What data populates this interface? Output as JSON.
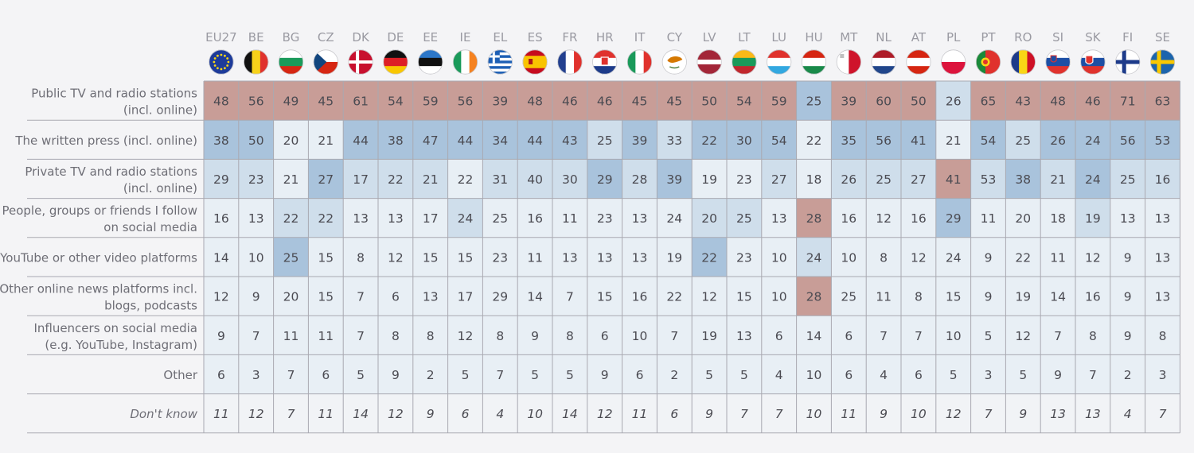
{
  "chart_data": {
    "type": "table",
    "countries": [
      "EU27",
      "BE",
      "BG",
      "CZ",
      "DK",
      "DE",
      "EE",
      "IE",
      "EL",
      "ES",
      "FR",
      "HR",
      "IT",
      "CY",
      "LV",
      "LT",
      "LU",
      "HU",
      "MT",
      "NL",
      "AT",
      "PL",
      "PT",
      "RO",
      "SI",
      "SK",
      "FI",
      "SE"
    ],
    "rows": [
      {
        "label": [
          "Public TV and radio stations",
          "(incl. online)"
        ],
        "italic": false,
        "values": [
          48,
          56,
          49,
          45,
          61,
          54,
          59,
          56,
          39,
          48,
          46,
          46,
          45,
          45,
          50,
          54,
          59,
          25,
          39,
          60,
          50,
          26,
          65,
          43,
          48,
          46,
          71,
          63
        ]
      },
      {
        "label": [
          "The written press (incl. online)"
        ],
        "italic": false,
        "values": [
          38,
          50,
          20,
          21,
          44,
          38,
          47,
          44,
          34,
          44,
          43,
          25,
          39,
          33,
          22,
          30,
          54,
          22,
          35,
          56,
          41,
          21,
          54,
          25,
          26,
          24,
          56,
          53
        ]
      },
      {
        "label": [
          "Private TV and radio stations",
          "(incl. online)"
        ],
        "italic": false,
        "values": [
          29,
          23,
          21,
          27,
          17,
          22,
          21,
          22,
          31,
          40,
          30,
          29,
          28,
          39,
          19,
          23,
          27,
          18,
          26,
          25,
          27,
          41,
          53,
          38,
          21,
          24,
          25,
          16
        ]
      },
      {
        "label": [
          "People, groups or friends I follow",
          "on social media"
        ],
        "italic": false,
        "values": [
          16,
          13,
          22,
          22,
          13,
          13,
          17,
          24,
          25,
          16,
          11,
          23,
          13,
          24,
          20,
          25,
          13,
          28,
          16,
          12,
          16,
          29,
          11,
          20,
          18,
          19,
          13,
          13
        ]
      },
      {
        "label": [
          "YouTube or other video platforms"
        ],
        "italic": false,
        "values": [
          14,
          10,
          25,
          15,
          8,
          12,
          15,
          15,
          23,
          11,
          13,
          13,
          13,
          19,
          22,
          23,
          10,
          24,
          10,
          8,
          12,
          24,
          9,
          22,
          11,
          12,
          9,
          13
        ]
      },
      {
        "label": [
          "Other online news platforms incl.",
          "blogs, podcasts"
        ],
        "italic": false,
        "values": [
          12,
          9,
          20,
          15,
          7,
          6,
          13,
          17,
          29,
          14,
          7,
          15,
          16,
          22,
          12,
          15,
          10,
          28,
          25,
          11,
          8,
          15,
          9,
          19,
          14,
          16,
          9,
          13
        ]
      },
      {
        "label": [
          "Influencers on social media",
          "(e.g. YouTube, Instagram)"
        ],
        "italic": false,
        "values": [
          9,
          7,
          11,
          11,
          7,
          8,
          8,
          12,
          8,
          9,
          8,
          6,
          10,
          7,
          19,
          13,
          6,
          14,
          6,
          7,
          7,
          10,
          5,
          12,
          7,
          8,
          9,
          8
        ]
      },
      {
        "label": [
          "Other"
        ],
        "italic": false,
        "values": [
          6,
          3,
          7,
          6,
          5,
          9,
          2,
          5,
          7,
          5,
          5,
          9,
          6,
          2,
          5,
          5,
          4,
          10,
          6,
          4,
          6,
          5,
          3,
          5,
          9,
          7,
          2,
          3
        ]
      },
      {
        "label": [
          "Don't know"
        ],
        "italic": true,
        "values": [
          11,
          12,
          7,
          11,
          14,
          12,
          9,
          6,
          4,
          10,
          14,
          12,
          11,
          6,
          9,
          7,
          7,
          10,
          11,
          9,
          10,
          12,
          7,
          9,
          13,
          13,
          4,
          7
        ]
      }
    ],
    "colors": {
      "top": "#c89d97",
      "second": "#a9c3dc",
      "third": "#cfdeeb",
      "rest": "#e8eff5",
      "plain": "#f1f3f6",
      "grid": "#a9a9b1"
    }
  },
  "flags": {
    "EU27": "eu-flag-icon",
    "BE": "belgium-flag-icon",
    "BG": "bulgaria-flag-icon",
    "CZ": "czechia-flag-icon",
    "DK": "denmark-flag-icon",
    "DE": "germany-flag-icon",
    "EE": "estonia-flag-icon",
    "IE": "ireland-flag-icon",
    "EL": "greece-flag-icon",
    "ES": "spain-flag-icon",
    "FR": "france-flag-icon",
    "HR": "croatia-flag-icon",
    "IT": "italy-flag-icon",
    "CY": "cyprus-flag-icon",
    "LV": "latvia-flag-icon",
    "LT": "lithuania-flag-icon",
    "LU": "luxembourg-flag-icon",
    "HU": "hungary-flag-icon",
    "MT": "malta-flag-icon",
    "NL": "netherlands-flag-icon",
    "AT": "austria-flag-icon",
    "PL": "poland-flag-icon",
    "PT": "portugal-flag-icon",
    "RO": "romania-flag-icon",
    "SI": "slovenia-flag-icon",
    "SK": "slovakia-flag-icon",
    "FI": "finland-flag-icon",
    "SE": "sweden-flag-icon"
  }
}
